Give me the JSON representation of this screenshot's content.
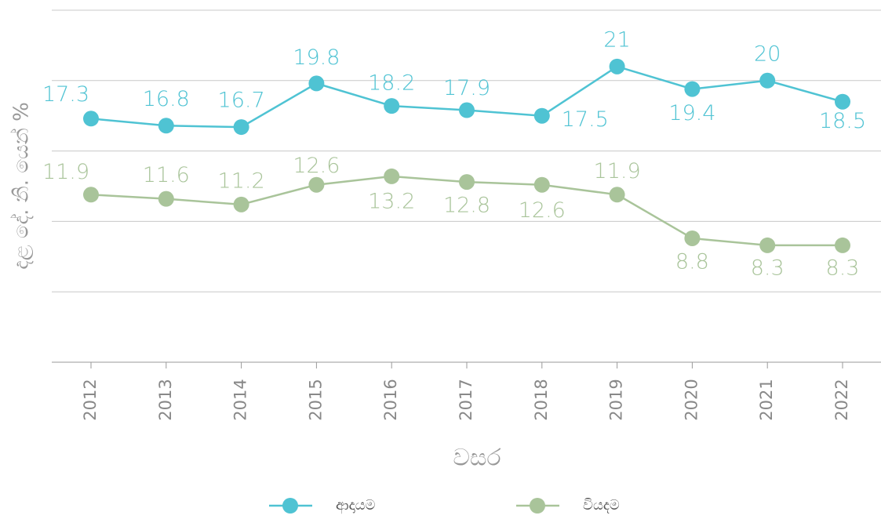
{
  "chart_data": {
    "type": "line",
    "x_label": "වසර",
    "y_label": "දළ දේ. නි. යෙන් %",
    "categories": [
      "2012",
      "2013",
      "2014",
      "2015",
      "2016",
      "2017",
      "2018",
      "2019",
      "2020",
      "2021",
      "2022"
    ],
    "series": [
      {
        "name": "ආදායම",
        "color": "#4fc3d3",
        "values": [
          17.3,
          16.8,
          16.7,
          19.8,
          18.2,
          17.9,
          17.5,
          21,
          19.4,
          20,
          18.5
        ]
      },
      {
        "name": "වියදම",
        "color": "#a9c49a",
        "values": [
          11.9,
          11.6,
          11.2,
          12.6,
          13.2,
          12.8,
          12.6,
          11.9,
          8.8,
          8.3,
          8.3
        ]
      }
    ],
    "ylim": [
      0,
      25
    ],
    "yticks": [
      0,
      5,
      10,
      15,
      20,
      25
    ],
    "grid": true
  }
}
